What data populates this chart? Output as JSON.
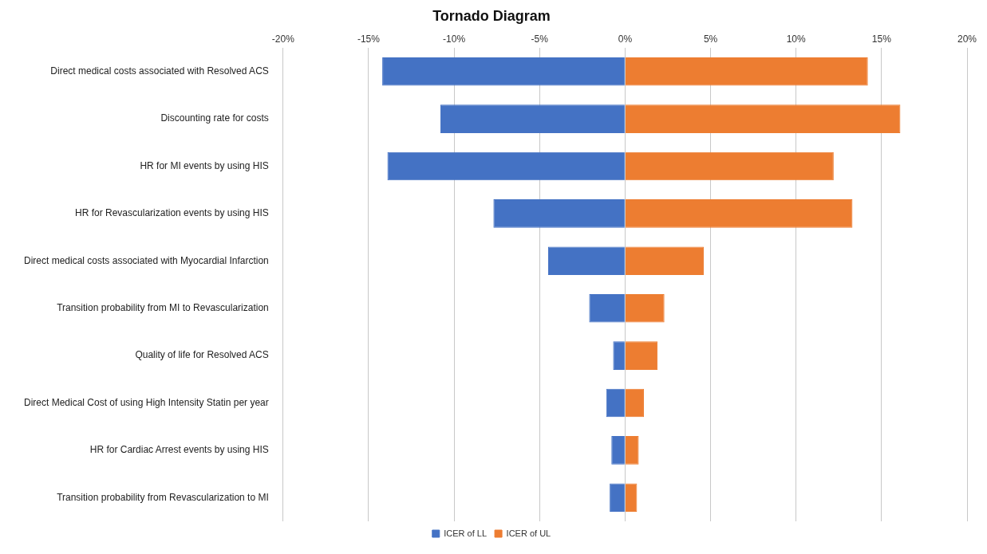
{
  "chart_data": {
    "type": "bar",
    "title": "Tornado Diagram",
    "orientation": "horizontal",
    "stacked": true,
    "categories": [
      "Direct medical costs associated with Resolved ACS",
      "Discounting rate for costs",
      "HR for MI events by using HIS",
      "HR for Revascularization events by using HIS",
      "Direct medical costs associated with Myocardial Infarction",
      "Transition probability from MI to Revascularization",
      "Quality of life for Resolved ACS",
      "Direct Medical Cost of using High Intensity Statin per year",
      "HR for Cardiac Arrest events by using HIS",
      "Transition probability from Revascularization to MI"
    ],
    "series": [
      {
        "name": "ICER of LL",
        "color": "#4472c4",
        "values": [
          -14.2,
          -10.8,
          -13.9,
          -7.7,
          -4.5,
          -2.1,
          -0.7,
          -1.1,
          -0.8,
          -0.9
        ]
      },
      {
        "name": "ICER of UL",
        "color": "#ed7d31",
        "values": [
          14.2,
          16.1,
          12.2,
          13.3,
          4.6,
          2.3,
          1.9,
          1.1,
          0.8,
          0.7
        ]
      }
    ],
    "xlim": [
      -20,
      20
    ],
    "xticks": [
      {
        "value": -20,
        "label": "-20%"
      },
      {
        "value": -15,
        "label": "-15%"
      },
      {
        "value": -10,
        "label": "-10%"
      },
      {
        "value": -5,
        "label": "-5%"
      },
      {
        "value": 0,
        "label": "0%"
      },
      {
        "value": 5,
        "label": "5%"
      },
      {
        "value": 10,
        "label": "10%"
      },
      {
        "value": 15,
        "label": "15%"
      },
      {
        "value": 20,
        "label": "20%"
      }
    ],
    "grid": "x",
    "legend": "bottom"
  }
}
